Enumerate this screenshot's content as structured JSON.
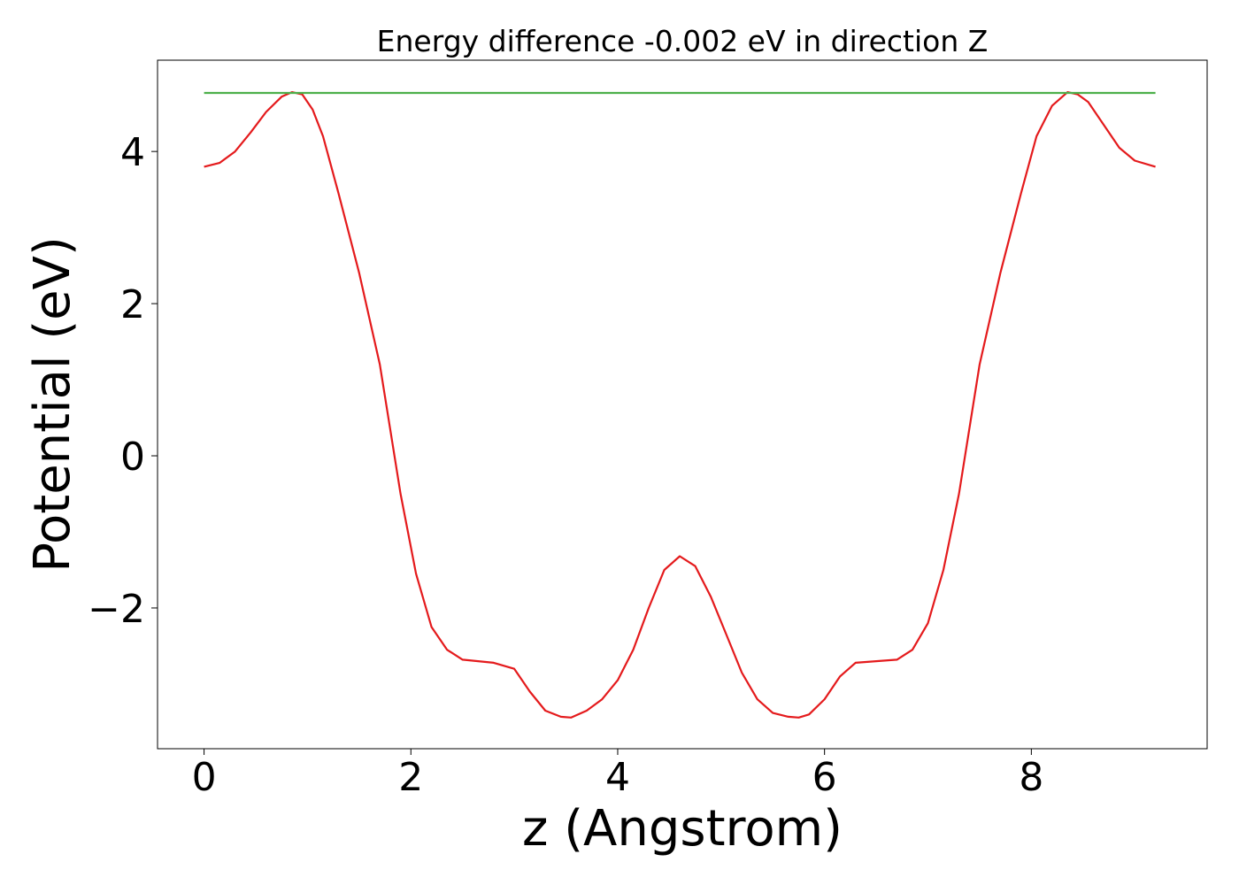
{
  "chart_data": {
    "type": "line",
    "title": "Energy difference -0.002 eV in direction Z",
    "xlabel": "z (Angstrom)",
    "ylabel": "Potential (eV)",
    "xlim": [
      -0.45,
      9.7
    ],
    "ylim": [
      -3.85,
      5.2
    ],
    "x_ticks": [
      0,
      2,
      4,
      6,
      8
    ],
    "y_ticks": [
      -2,
      0,
      2,
      4
    ],
    "x_tick_labels": [
      "0",
      "2",
      "4",
      "6",
      "8"
    ],
    "y_tick_labels": [
      "−2",
      "0",
      "2",
      "4"
    ],
    "grid": false,
    "series": [
      {
        "color": "#e41a1c",
        "x": [
          0,
          0.15,
          0.3,
          0.45,
          0.6,
          0.75,
          0.85,
          0.95,
          1.05,
          1.15,
          1.3,
          1.5,
          1.7,
          1.9,
          2.05,
          2.2,
          2.35,
          2.5,
          2.65,
          2.8,
          3.0,
          3.15,
          3.3,
          3.45,
          3.55,
          3.7,
          3.85,
          4.0,
          4.15,
          4.3,
          4.45,
          4.6,
          4.75,
          4.9,
          5.05,
          5.2,
          5.35,
          5.5,
          5.65,
          5.75,
          5.85,
          6.0,
          6.15,
          6.3,
          6.5,
          6.7,
          6.85,
          7.0,
          7.15,
          7.3,
          7.5,
          7.7,
          7.9,
          8.05,
          8.2,
          8.35,
          8.45,
          8.55,
          8.7,
          8.85,
          9.0,
          9.2
        ],
        "y": [
          3.8,
          3.85,
          4.0,
          4.25,
          4.52,
          4.72,
          4.78,
          4.75,
          4.55,
          4.2,
          3.45,
          2.4,
          1.2,
          -0.5,
          -1.55,
          -2.25,
          -2.55,
          -2.68,
          -2.7,
          -2.72,
          -2.8,
          -3.1,
          -3.35,
          -3.43,
          -3.44,
          -3.35,
          -3.2,
          -2.95,
          -2.55,
          -2.0,
          -1.5,
          -1.32,
          -1.45,
          -1.85,
          -2.35,
          -2.85,
          -3.2,
          -3.38,
          -3.43,
          -3.44,
          -3.4,
          -3.2,
          -2.9,
          -2.72,
          -2.7,
          -2.68,
          -2.55,
          -2.2,
          -1.5,
          -0.5,
          1.2,
          2.4,
          3.45,
          4.2,
          4.6,
          4.78,
          4.75,
          4.65,
          4.35,
          4.05,
          3.88,
          3.8
        ]
      },
      {
        "color": "#4daf4a",
        "x": [
          0,
          9.2
        ],
        "y": [
          4.77,
          4.77
        ]
      }
    ]
  }
}
